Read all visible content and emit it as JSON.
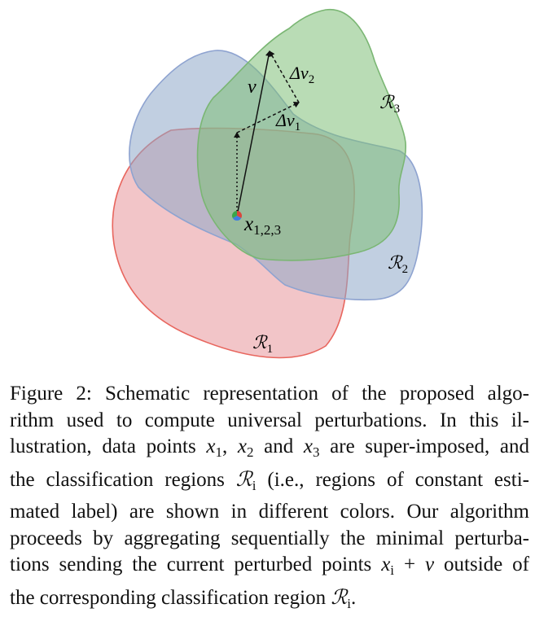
{
  "diagram": {
    "regions": [
      {
        "label": "ℛ",
        "sub": "1",
        "fill": "#e7959b",
        "stroke": "#e8665e"
      },
      {
        "label": "ℛ",
        "sub": "2",
        "fill": "#8ea7c8",
        "stroke": "#8ea3d0"
      },
      {
        "label": "ℛ",
        "sub": "3",
        "fill": "#7fbf78",
        "stroke": "#7ab673"
      }
    ],
    "point_label": {
      "main": "x",
      "sub": "1,2,3"
    },
    "vector_label": "v",
    "delta1_label": {
      "main": "Δv",
      "sub": "1"
    },
    "delta2_label": {
      "main": "Δv",
      "sub": "2"
    }
  },
  "caption": {
    "lines": [
      [
        "Figure 2:  Schematic representation of the proposed algo-"
      ],
      [
        "rithm used to compute universal perturbations.  In this il-"
      ],
      [
        "lustration, data points ",
        "x",
        "1",
        ", ",
        "x",
        "2",
        " and ",
        "x",
        "3",
        " are super-imposed, and"
      ],
      [
        "the classification regions ",
        "ℛ",
        "i",
        " (i.e., regions of constant esti-"
      ],
      [
        "mated label) are shown in different colors. Our algorithm"
      ],
      [
        "proceeds by aggregating sequentially the minimal perturba-"
      ],
      [
        "tions sending the current perturbed points ",
        "x",
        "i",
        " + ",
        "v",
        " outside of"
      ],
      [
        "the corresponding classification region ",
        "ℛ",
        "i",
        "."
      ]
    ]
  }
}
